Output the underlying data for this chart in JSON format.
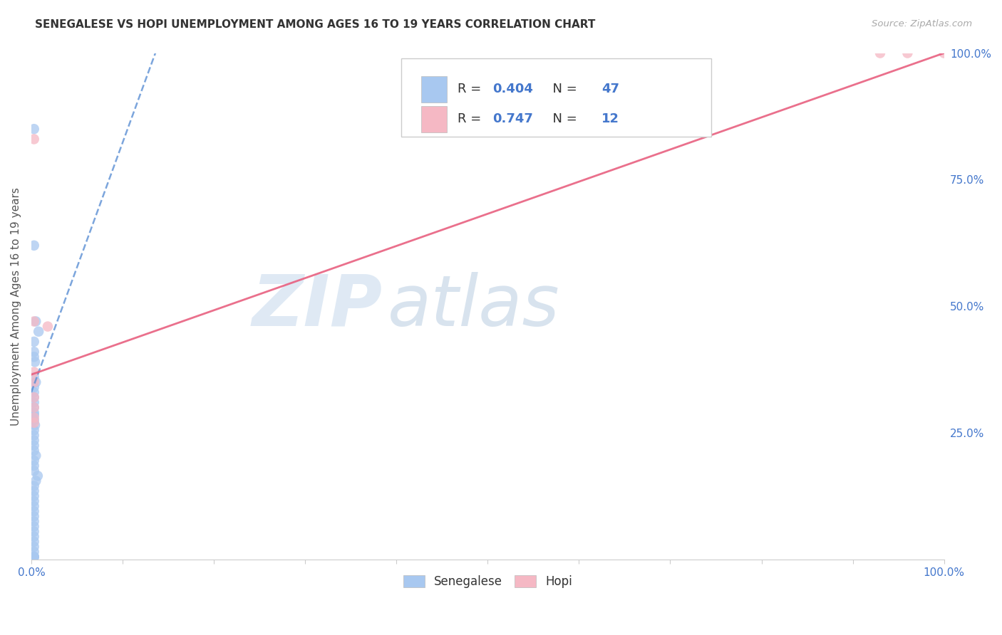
{
  "title": "SENEGALESE VS HOPI UNEMPLOYMENT AMONG AGES 16 TO 19 YEARS CORRELATION CHART",
  "source": "Source: ZipAtlas.com",
  "ylabel": "Unemployment Among Ages 16 to 19 years",
  "xlim": [
    0.0,
    1.0
  ],
  "ylim": [
    0.0,
    1.0
  ],
  "legend_labels": [
    "Senegalese",
    "Hopi"
  ],
  "blue_color": "#a8c8f0",
  "pink_color": "#f5b8c4",
  "blue_line_color": "#5b8fd4",
  "pink_line_color": "#e86080",
  "R_blue": 0.404,
  "N_blue": 47,
  "R_pink": 0.747,
  "N_pink": 12,
  "blue_scatter_x": [
    0.003,
    0.003,
    0.005,
    0.008,
    0.003,
    0.003,
    0.003,
    0.004,
    0.003,
    0.005,
    0.003,
    0.003,
    0.003,
    0.003,
    0.003,
    0.003,
    0.003,
    0.003,
    0.004,
    0.003,
    0.003,
    0.003,
    0.003,
    0.003,
    0.005,
    0.003,
    0.003,
    0.003,
    0.007,
    0.005,
    0.003,
    0.003,
    0.003,
    0.003,
    0.003,
    0.003,
    0.003,
    0.003,
    0.003,
    0.003,
    0.003,
    0.003,
    0.003,
    0.003,
    0.003,
    0.003,
    0.003
  ],
  "blue_scatter_y": [
    0.85,
    0.62,
    0.47,
    0.45,
    0.43,
    0.41,
    0.4,
    0.39,
    0.36,
    0.35,
    0.34,
    0.33,
    0.32,
    0.31,
    0.3,
    0.29,
    0.285,
    0.275,
    0.265,
    0.255,
    0.245,
    0.235,
    0.225,
    0.215,
    0.205,
    0.195,
    0.185,
    0.175,
    0.165,
    0.155,
    0.145,
    0.135,
    0.125,
    0.115,
    0.105,
    0.095,
    0.085,
    0.075,
    0.065,
    0.055,
    0.045,
    0.035,
    0.025,
    0.015,
    0.005,
    0.005,
    0.005
  ],
  "pink_scatter_x": [
    0.003,
    0.003,
    0.003,
    0.018,
    0.003,
    0.003,
    0.003,
    0.003,
    0.003,
    0.93,
    0.96,
    1.0
  ],
  "pink_scatter_y": [
    0.83,
    0.47,
    0.37,
    0.46,
    0.35,
    0.32,
    0.3,
    0.28,
    0.27,
    1.0,
    1.0,
    1.0
  ],
  "blue_trend_x": [
    0.0,
    0.14
  ],
  "blue_trend_y": [
    0.33,
    1.02
  ],
  "pink_trend_x": [
    0.0,
    1.0
  ],
  "pink_trend_y": [
    0.365,
    1.0
  ],
  "watermark_zip": "ZIP",
  "watermark_atlas": "atlas",
  "background_color": "#ffffff",
  "grid_color": "#d0d0d0",
  "title_fontsize": 11,
  "value_color": "#4477cc",
  "label_color": "#555555",
  "tick_color": "#4477cc",
  "source_color": "#aaaaaa"
}
